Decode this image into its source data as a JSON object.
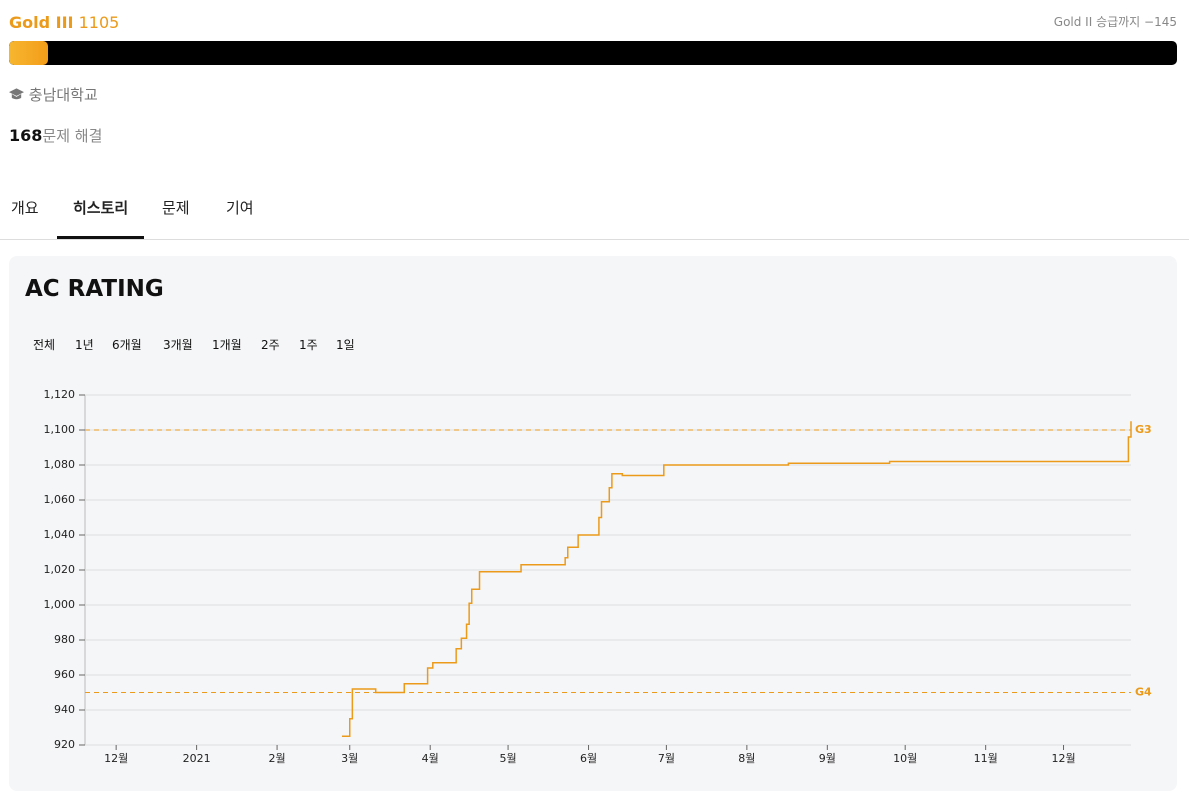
{
  "profile": {
    "tier": "Gold III",
    "rating": 1105,
    "next_tier": "Gold II 승급까지 −145",
    "progress": 3.3,
    "school": "충남대학교",
    "solved": 168,
    "solved_label": "문제 해결"
  },
  "tabs": {
    "items": [
      "개요",
      "히스토리",
      "문제",
      "기여"
    ],
    "active": 1
  },
  "chart_data": {
    "type": "line",
    "title": "AC RATING",
    "step": true,
    "color": "#ec9a1a",
    "grid": true,
    "ranges": [
      "전체",
      "1년",
      "6개월",
      "3개월",
      "1개월",
      "2주",
      "1주",
      "1일"
    ],
    "x": [
      "2021-02-26",
      "2021-03-01",
      "2021-03-02",
      "2021-03-11",
      "2021-03-22",
      "2021-03-31",
      "2021-04-02",
      "2021-04-11",
      "2021-04-13",
      "2021-04-15",
      "2021-04-16",
      "2021-04-17",
      "2021-04-20",
      "2021-05-06",
      "2021-05-23",
      "2021-05-24",
      "2021-05-28",
      "2021-06-05",
      "2021-06-06",
      "2021-06-09",
      "2021-06-10",
      "2021-06-14",
      "2021-06-30",
      "2021-08-17",
      "2021-09-25",
      "2021-12-26",
      "2021-12-27"
    ],
    "values": [
      925,
      935,
      952,
      950,
      955,
      964,
      967,
      975,
      981,
      989,
      1001,
      1009,
      1019,
      1023,
      1027,
      1033,
      1040,
      1050,
      1059,
      1067,
      1075,
      1074,
      1080,
      1081,
      1082,
      1096,
      1105
    ],
    "xlim": [
      "2020-11-19",
      "2021-12-27"
    ],
    "xticks": [
      {
        "value": "2020-12-01",
        "label": "12월"
      },
      {
        "value": "2021-01-01",
        "label": "2021"
      },
      {
        "value": "2021-02-01",
        "label": "2월"
      },
      {
        "value": "2021-03-01",
        "label": "3월"
      },
      {
        "value": "2021-04-01",
        "label": "4월"
      },
      {
        "value": "2021-05-01",
        "label": "5월"
      },
      {
        "value": "2021-06-01",
        "label": "6월"
      },
      {
        "value": "2021-07-01",
        "label": "7월"
      },
      {
        "value": "2021-08-01",
        "label": "8월"
      },
      {
        "value": "2021-09-01",
        "label": "9월"
      },
      {
        "value": "2021-10-01",
        "label": "10월"
      },
      {
        "value": "2021-11-01",
        "label": "11월"
      },
      {
        "value": "2021-12-01",
        "label": "12월"
      }
    ],
    "ylim": [
      920,
      1120
    ],
    "yticks": [
      920,
      940,
      960,
      980,
      {
        "value": 1000,
        "label": "1,000"
      },
      {
        "value": 1020,
        "label": "1,020"
      },
      {
        "value": 1040,
        "label": "1,040"
      },
      {
        "value": 1060,
        "label": "1,060"
      },
      {
        "value": 1080,
        "label": "1,080"
      },
      {
        "value": 1100,
        "label": "1,100"
      },
      {
        "value": 1120,
        "label": "1,120"
      }
    ],
    "reference_lines": [
      {
        "value": 1100,
        "label": "G3"
      },
      {
        "value": 950,
        "label": "G4"
      }
    ]
  }
}
